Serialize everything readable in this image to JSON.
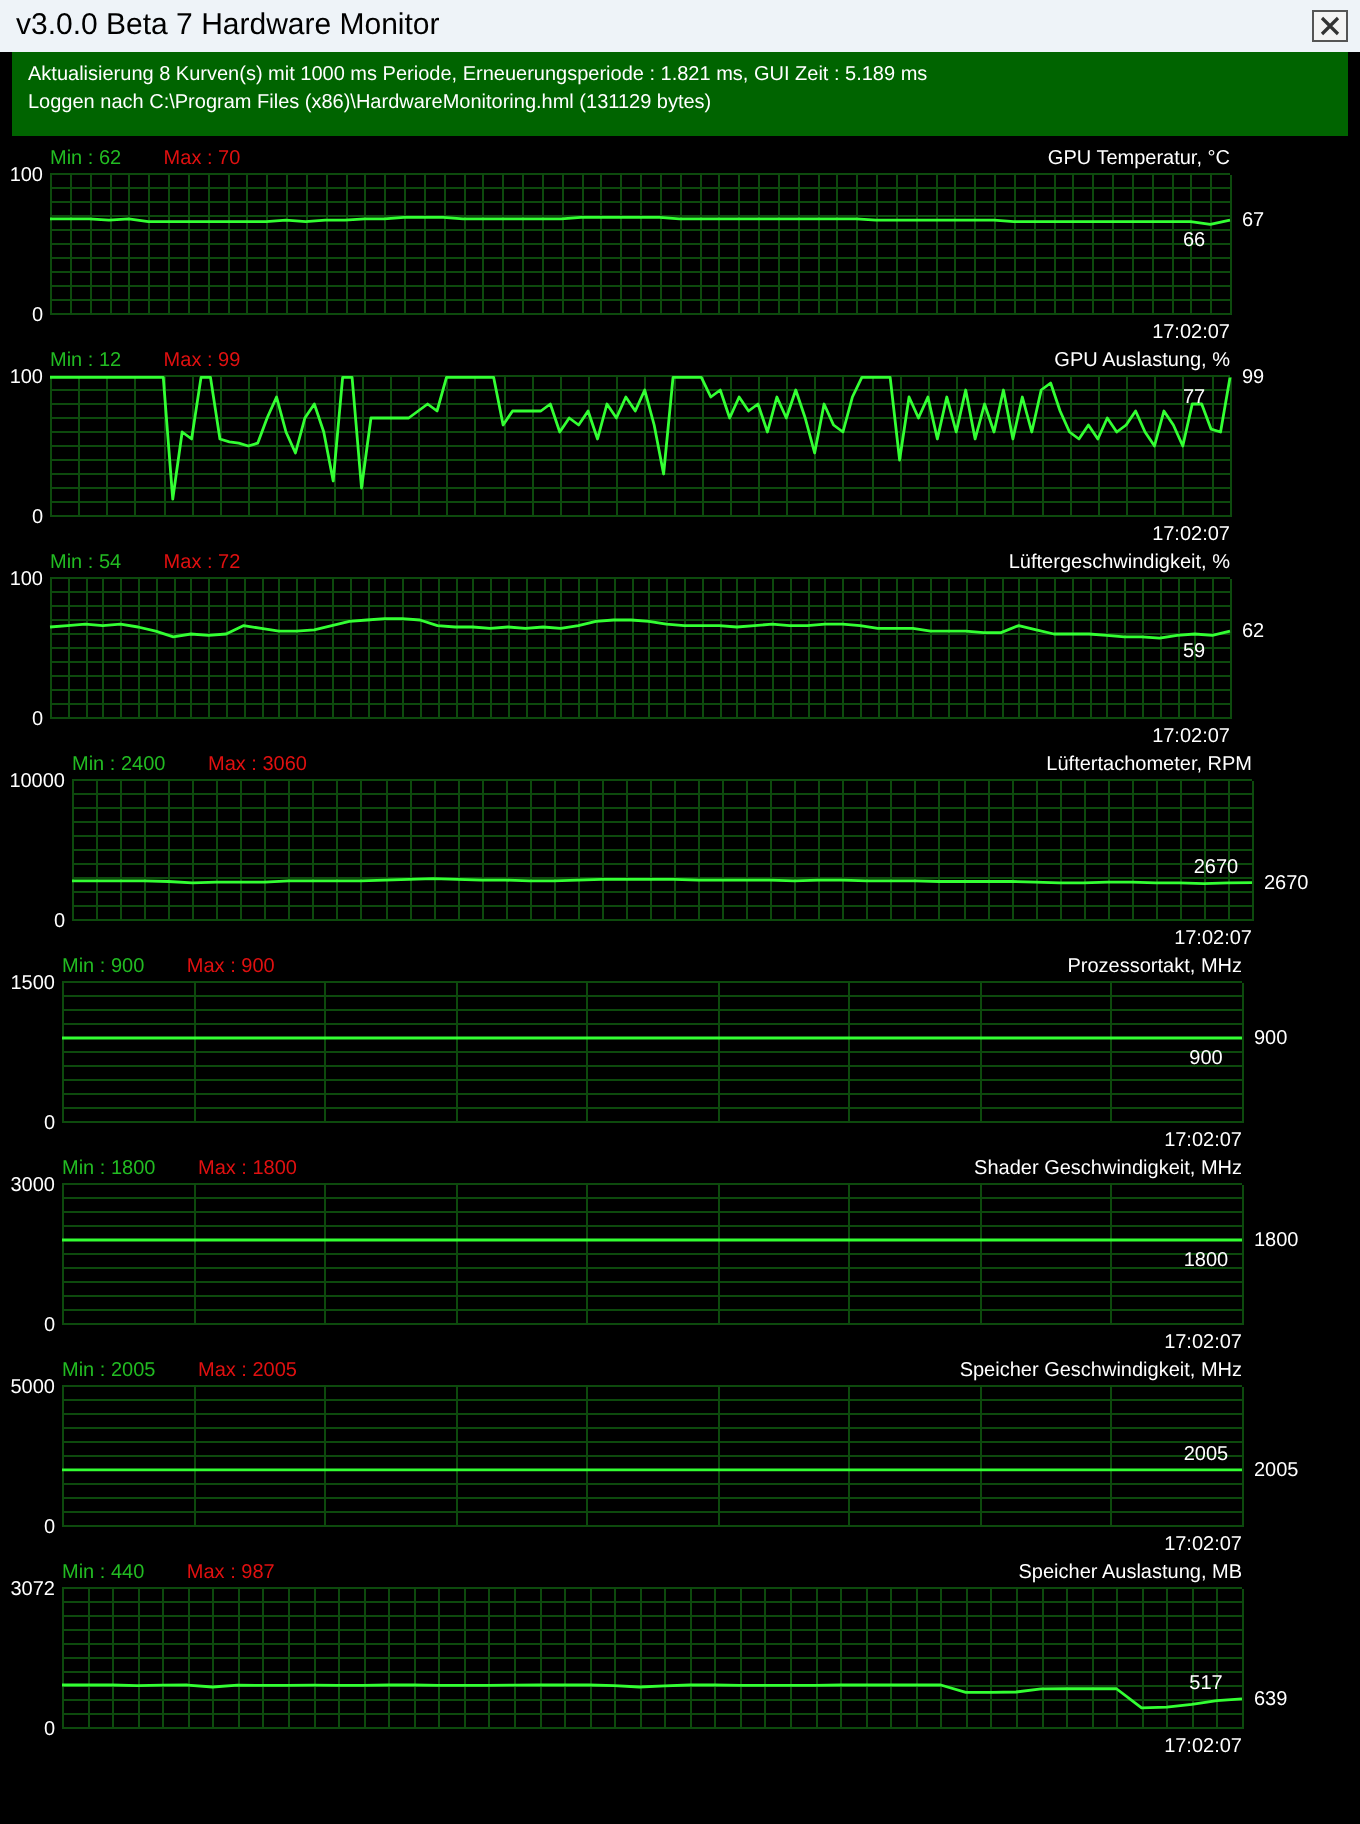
{
  "chart_data": [
    {
      "type": "other",
      "title": "v3.0.0 Beta 7 Hardware Monitor",
      "annotations": [
        "Aktualisierung 8 Kurven(s) mit 1000 ms Periode, Erneuerungsperiode : 1.821 ms, GUI Zeit : 5.189 ms",
        "Loggen nach C:\\Program Files (x86)\\HardwareMonitoring.hml (131129 bytes)"
      ]
    },
    {
      "type": "line",
      "title": "GPU Temperatur, °C",
      "annotations": [
        "Min : 62",
        "Max : 70",
        "17:02:07",
        "66",
        "67"
      ],
      "categories": [
        null,
        null,
        null,
        null,
        null,
        null,
        null,
        null,
        null,
        null,
        null,
        null,
        null,
        null,
        null,
        null,
        null,
        null,
        null,
        null,
        null,
        null,
        null,
        null,
        null,
        null,
        null,
        null,
        null,
        null,
        null,
        null,
        null,
        null,
        null,
        null,
        null,
        null,
        null,
        null,
        null,
        null,
        null,
        null,
        null,
        null,
        null,
        null,
        null,
        null,
        null,
        null,
        null,
        null,
        null,
        null,
        null,
        null,
        null,
        null,
        null
      ],
      "tick_labels": "y",
      "grid": true,
      "series": [
        {
          "color": "#33ff33",
          "values": [
            68,
            68,
            68,
            67,
            68,
            66,
            66,
            66,
            66,
            66,
            66,
            66,
            67,
            66,
            67,
            67,
            68,
            68,
            69,
            69,
            69,
            68,
            68,
            68,
            68,
            68,
            68,
            69,
            69,
            69,
            69,
            69,
            68,
            68,
            68,
            68,
            68,
            68,
            68,
            68,
            68,
            68,
            67,
            67,
            67,
            67,
            67,
            67,
            67,
            66,
            66,
            66,
            66,
            66,
            66,
            66,
            66,
            66,
            66,
            64,
            67
          ]
        }
      ],
      "ylim": [
        0,
        100
      ],
      "yticks": [
        0,
        {
          "value": 10,
          "label": null
        },
        {
          "value": 20,
          "label": null
        },
        {
          "value": 30,
          "label": null
        },
        {
          "value": 40,
          "label": null
        },
        {
          "value": 50,
          "label": null
        },
        {
          "value": 60,
          "label": null
        },
        {
          "value": 70,
          "label": null
        },
        {
          "value": 80,
          "label": null
        },
        {
          "value": 90,
          "label": null
        },
        100
      ]
    },
    {
      "type": "line",
      "title": "GPU Auslastung, %",
      "annotations": [
        "Min : 12",
        "Max : 99",
        "17:02:07",
        "77",
        "99"
      ],
      "categories": [
        null,
        null,
        null,
        null,
        null,
        null,
        null,
        null,
        null,
        null,
        null,
        null,
        null,
        null,
        null,
        null,
        null,
        null,
        null,
        null,
        null,
        null,
        null,
        null,
        null,
        null,
        null,
        null,
        null,
        null,
        null,
        null,
        null,
        null,
        null,
        null,
        null,
        null,
        null,
        null,
        null,
        null,
        null,
        null,
        null,
        null,
        null,
        null,
        null,
        null,
        null,
        null,
        null,
        null,
        null,
        null,
        null,
        null,
        null,
        null,
        null,
        null,
        null,
        null,
        null,
        null,
        null,
        null,
        null,
        null,
        null,
        null,
        null,
        null,
        null,
        null,
        null,
        null,
        null,
        null,
        null,
        null,
        null,
        null,
        null,
        null,
        null,
        null,
        null,
        null,
        null,
        null,
        null,
        null,
        null,
        null,
        null,
        null,
        null,
        null,
        null,
        null,
        null,
        null,
        null,
        null,
        null,
        null,
        null,
        null,
        null,
        null,
        null,
        null,
        null,
        null,
        null,
        null,
        null,
        null,
        null,
        null,
        null,
        null,
        null,
        null
      ],
      "tick_labels": "y",
      "grid": true,
      "series": [
        {
          "color": "#33ff33",
          "values": [
            99,
            99,
            99,
            99,
            99,
            99,
            99,
            99,
            99,
            99,
            99,
            99,
            99,
            12,
            60,
            55,
            99,
            99,
            55,
            53,
            52,
            50,
            52,
            70,
            85,
            60,
            45,
            70,
            80,
            60,
            25,
            99,
            99,
            20,
            70,
            70,
            70,
            70,
            70,
            75,
            80,
            75,
            99,
            99,
            99,
            99,
            99,
            99,
            65,
            75,
            75,
            75,
            75,
            80,
            60,
            70,
            65,
            75,
            55,
            80,
            70,
            85,
            75,
            90,
            65,
            30,
            99,
            99,
            99,
            99,
            85,
            90,
            70,
            85,
            75,
            80,
            60,
            85,
            70,
            90,
            70,
            45,
            80,
            65,
            60,
            85,
            99,
            99,
            99,
            99,
            40,
            85,
            70,
            85,
            55,
            85,
            60,
            90,
            55,
            80,
            60,
            90,
            55,
            85,
            60,
            90,
            95,
            75,
            60,
            55,
            65,
            55,
            70,
            60,
            65,
            75,
            60,
            50,
            75,
            65,
            50,
            80,
            80,
            62,
            60,
            99
          ]
        }
      ],
      "ylim": [
        0,
        100
      ],
      "yticks": [
        0,
        {
          "value": 10,
          "label": null
        },
        {
          "value": 20,
          "label": null
        },
        {
          "value": 30,
          "label": null
        },
        {
          "value": 40,
          "label": null
        },
        {
          "value": 50,
          "label": null
        },
        {
          "value": 60,
          "label": null
        },
        {
          "value": 70,
          "label": null
        },
        {
          "value": 80,
          "label": null
        },
        {
          "value": 90,
          "label": null
        },
        100
      ]
    },
    {
      "type": "line",
      "title": "Lüftergeschwindigkeit, %",
      "annotations": [
        "Min : 54",
        "Max : 72",
        "17:02:07",
        "59",
        "62"
      ],
      "categories": [
        null,
        null,
        null,
        null,
        null,
        null,
        null,
        null,
        null,
        null,
        null,
        null,
        null,
        null,
        null,
        null,
        null,
        null,
        null,
        null,
        null,
        null,
        null,
        null,
        null,
        null,
        null,
        null,
        null,
        null,
        null,
        null,
        null,
        null,
        null,
        null,
        null,
        null,
        null,
        null,
        null,
        null,
        null,
        null,
        null,
        null,
        null,
        null,
        null,
        null,
        null,
        null,
        null,
        null,
        null,
        null,
        null,
        null,
        null,
        null,
        null,
        null,
        null,
        null,
        null,
        null,
        null,
        null
      ],
      "tick_labels": "y",
      "grid": true,
      "series": [
        {
          "color": "#33ff33",
          "values": [
            65,
            66,
            67,
            66,
            67,
            65,
            62,
            58,
            60,
            59,
            60,
            66,
            64,
            62,
            62,
            63,
            66,
            69,
            70,
            71,
            71,
            70,
            66,
            65,
            65,
            64,
            65,
            64,
            65,
            64,
            66,
            69,
            70,
            70,
            69,
            67,
            66,
            66,
            66,
            65,
            66,
            67,
            66,
            66,
            67,
            67,
            66,
            64,
            64,
            64,
            62,
            62,
            62,
            61,
            61,
            66,
            63,
            60,
            60,
            60,
            59,
            58,
            58,
            57,
            59,
            60,
            59,
            62
          ]
        }
      ],
      "ylim": [
        0,
        100
      ],
      "yticks": [
        0,
        {
          "value": 10,
          "label": null
        },
        {
          "value": 20,
          "label": null
        },
        {
          "value": 30,
          "label": null
        },
        {
          "value": 40,
          "label": null
        },
        {
          "value": 50,
          "label": null
        },
        {
          "value": 60,
          "label": null
        },
        {
          "value": 70,
          "label": null
        },
        {
          "value": 80,
          "label": null
        },
        {
          "value": 90,
          "label": null
        },
        100
      ]
    },
    {
      "type": "line",
      "title": "Lüftertachometer, RPM",
      "annotations": [
        "Min : 2400",
        "Max : 3060",
        "17:02:07",
        "2670",
        "2670"
      ],
      "categories": [
        null,
        null,
        null,
        null,
        null,
        null,
        null,
        null,
        null,
        null,
        null,
        null,
        null,
        null,
        null,
        null,
        null,
        null,
        null,
        null,
        null,
        null,
        null,
        null,
        null,
        null,
        null,
        null,
        null,
        null,
        null,
        null,
        null,
        null,
        null,
        null,
        null,
        null,
        null,
        null,
        null,
        null,
        null,
        null,
        null,
        null,
        null,
        null,
        null,
        null
      ],
      "tick_labels": "y",
      "grid": true,
      "series": [
        {
          "color": "#33ff33",
          "values": [
            2800,
            2800,
            2800,
            2800,
            2750,
            2650,
            2700,
            2700,
            2700,
            2800,
            2800,
            2800,
            2800,
            2850,
            2900,
            2950,
            2900,
            2850,
            2850,
            2800,
            2800,
            2850,
            2900,
            2900,
            2900,
            2900,
            2850,
            2850,
            2850,
            2850,
            2800,
            2850,
            2850,
            2800,
            2800,
            2800,
            2750,
            2750,
            2750,
            2750,
            2700,
            2650,
            2650,
            2700,
            2700,
            2650,
            2650,
            2600,
            2650,
            2670
          ]
        }
      ],
      "ylim": [
        0,
        10000
      ],
      "yticks": [
        0,
        {
          "value": 1000,
          "label": null
        },
        {
          "value": 2000,
          "label": null
        },
        {
          "value": 3000,
          "label": null
        },
        {
          "value": 4000,
          "label": null
        },
        {
          "value": 5000,
          "label": null
        },
        {
          "value": 6000,
          "label": null
        },
        {
          "value": 7000,
          "label": null
        },
        {
          "value": 8000,
          "label": null
        },
        {
          "value": 9000,
          "label": null
        },
        10000
      ]
    },
    {
      "type": "line",
      "title": "Prozessortakt, MHz",
      "annotations": [
        "Min : 900",
        "Max : 900",
        "17:02:07",
        "900",
        "900"
      ],
      "categories": [
        null,
        null,
        null,
        null,
        null,
        null,
        null,
        null,
        null,
        null
      ],
      "tick_labels": "y",
      "grid": true,
      "series": [
        {
          "color": "#33ff33",
          "values": [
            900,
            900,
            900,
            900,
            900,
            900,
            900,
            900,
            900,
            900
          ]
        }
      ],
      "ylim": [
        0,
        1500
      ],
      "yticks": [
        0,
        {
          "value": 150,
          "label": null
        },
        {
          "value": 300,
          "label": null
        },
        {
          "value": 450,
          "label": null
        },
        {
          "value": 600,
          "label": null
        },
        {
          "value": 750,
          "label": null
        },
        {
          "value": 1050,
          "label": null
        },
        {
          "value": 1200,
          "label": null
        },
        {
          "value": 1350,
          "label": null
        },
        1500
      ]
    },
    {
      "type": "line",
      "title": "Shader Geschwindigkeit, MHz",
      "annotations": [
        "Min : 1800",
        "Max : 1800",
        "17:02:07",
        "1800",
        "1800"
      ],
      "categories": [
        null,
        null,
        null,
        null,
        null,
        null,
        null,
        null,
        null,
        null
      ],
      "tick_labels": "y",
      "grid": true,
      "series": [
        {
          "color": "#33ff33",
          "values": [
            1800,
            1800,
            1800,
            1800,
            1800,
            1800,
            1800,
            1800,
            1800,
            1800
          ]
        }
      ],
      "ylim": [
        0,
        3000
      ],
      "yticks": [
        0,
        {
          "value": 300,
          "label": null
        },
        {
          "value": 600,
          "label": null
        },
        {
          "value": 900,
          "label": null
        },
        {
          "value": 1200,
          "label": null
        },
        {
          "value": 1500,
          "label": null
        },
        {
          "value": 2100,
          "label": null
        },
        {
          "value": 2400,
          "label": null
        },
        {
          "value": 2700,
          "label": null
        },
        3000
      ]
    },
    {
      "type": "line",
      "title": "Speicher Geschwindigkeit, MHz",
      "annotations": [
        "Min : 2005",
        "Max : 2005",
        "17:02:07",
        "2005",
        "2005"
      ],
      "categories": [
        null,
        null,
        null,
        null,
        null,
        null,
        null,
        null,
        null,
        null
      ],
      "tick_labels": "y",
      "grid": true,
      "series": [
        {
          "color": "#33ff33",
          "values": [
            2005,
            2005,
            2005,
            2005,
            2005,
            2005,
            2005,
            2005,
            2005,
            2005
          ]
        }
      ],
      "ylim": [
        0,
        5000
      ],
      "yticks": [
        0,
        {
          "value": 500,
          "label": null
        },
        {
          "value": 1000,
          "label": null
        },
        {
          "value": 1500,
          "label": null
        },
        {
          "value": 2500,
          "label": null
        },
        {
          "value": 3000,
          "label": null
        },
        {
          "value": 3500,
          "label": null
        },
        {
          "value": 4000,
          "label": null
        },
        {
          "value": 4500,
          "label": null
        },
        5000
      ]
    },
    {
      "type": "line",
      "title": "Speicher Auslastung, MB",
      "annotations": [
        "Min : 440",
        "Max : 987",
        "17:02:07",
        "517",
        "639"
      ],
      "categories": [
        null,
        null,
        null,
        null,
        null,
        null,
        null,
        null,
        null,
        null,
        null,
        null,
        null,
        null,
        null,
        null,
        null,
        null,
        null,
        null,
        null,
        null,
        null,
        null,
        null,
        null,
        null,
        null,
        null,
        null,
        null,
        null,
        null,
        null,
        null,
        null,
        null,
        null,
        null,
        null,
        null,
        null,
        null,
        null,
        null,
        null,
        null,
        null
      ],
      "tick_labels": "y",
      "grid": true,
      "series": [
        {
          "color": "#33ff33",
          "values": [
            943,
            943,
            943,
            930,
            940,
            943,
            900,
            940,
            935,
            935,
            940,
            935,
            935,
            943,
            943,
            935,
            935,
            935,
            940,
            943,
            943,
            943,
            930,
            900,
            925,
            943,
            943,
            935,
            935,
            935,
            935,
            943,
            943,
            943,
            943,
            943,
            780,
            780,
            790,
            860,
            861,
            861,
            861,
            440,
            460,
            520,
            600,
            639
          ]
        }
      ],
      "ylim": [
        0,
        3072
      ],
      "yticks": [
        0,
        {
          "value": 307.2,
          "label": null
        },
        {
          "value": 614.4,
          "label": null
        },
        {
          "value": 921.6,
          "label": null
        },
        {
          "value": 1228.8,
          "label": null
        },
        {
          "value": 1536,
          "label": null
        },
        {
          "value": 1843.2,
          "label": null
        },
        {
          "value": 2150.4,
          "label": null
        },
        {
          "value": 2457.6,
          "label": null
        },
        {
          "value": 2764.8,
          "label": null
        },
        3072
      ]
    }
  ]
}
